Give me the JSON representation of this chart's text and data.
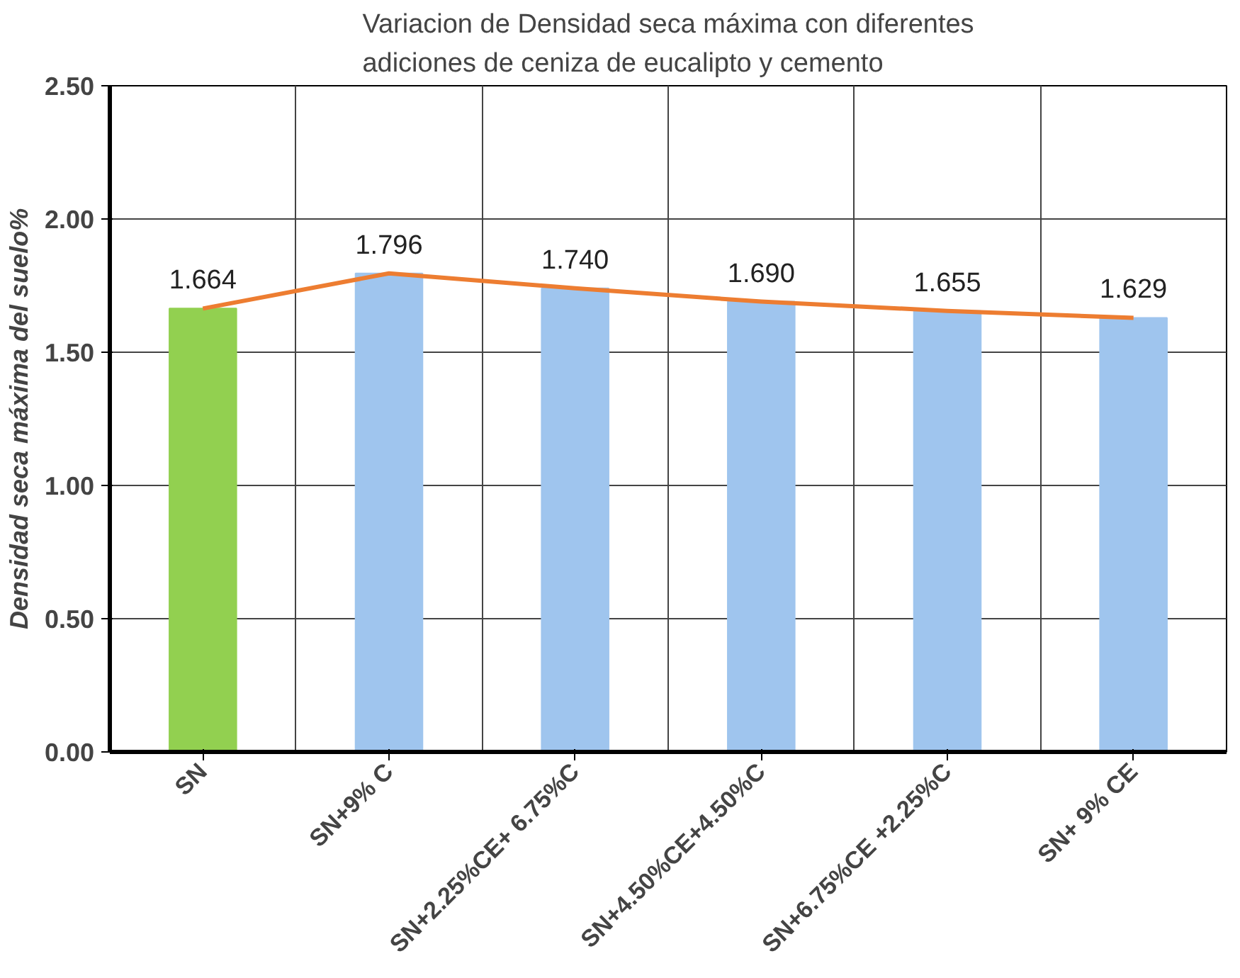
{
  "chart_data": {
    "type": "bar",
    "title": "Variacion de Densidad seca máxima con diferentes\nadiciones de ceniza de eucalipto y cemento",
    "ylabel": "Densidad seca máxima del suelo%",
    "categories": [
      "SN",
      "SN+9% C",
      "SN+2.25%CE+ 6.75%C",
      "SN+4.50%CE+4.50%C",
      "SN+6.75%CE +2.25%C",
      "SN+ 9% CE"
    ],
    "series": [
      {
        "colors": [
          "#92d050",
          "#9fc5ee",
          "#9fc5ee",
          "#9fc5ee",
          "#9fc5ee",
          "#9fc5ee"
        ],
        "values": [
          1.664,
          1.796,
          1.74,
          1.69,
          1.655,
          1.629
        ],
        "value_labels": [
          "1.664",
          "1.796",
          "1.740",
          "1.690",
          "1.655",
          "1.629"
        ]
      },
      {
        "type": "line",
        "color": "#ed7d31",
        "values": [
          1.664,
          1.796,
          1.74,
          1.69,
          1.655,
          1.629
        ]
      }
    ],
    "ylim": [
      0,
      2.5
    ],
    "yticks": [
      {
        "value": 0,
        "label": "0.00"
      },
      {
        "value": 0.5,
        "label": "0.50"
      },
      {
        "value": 1,
        "label": "1.00"
      },
      {
        "value": 1.5,
        "label": "1.50"
      },
      {
        "value": 2,
        "label": "2.00"
      },
      {
        "value": 2.5,
        "label": "2.50"
      }
    ],
    "grid": true
  }
}
